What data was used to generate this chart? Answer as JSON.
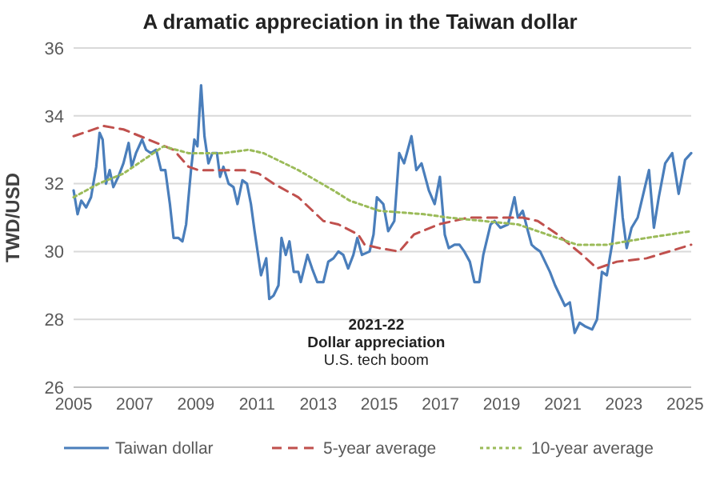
{
  "chart_data": {
    "type": "line",
    "title": "A dramatic appreciation in the Taiwan dollar",
    "ylabel": "TWD/USD",
    "xlim": [
      2005,
      2025.2
    ],
    "xticks": [
      2005,
      2007,
      2009,
      2011,
      2013,
      2015,
      2017,
      2019,
      2021,
      2023,
      2025
    ],
    "ylim": [
      26,
      36
    ],
    "yticks": [
      26,
      28,
      30,
      32,
      34,
      36
    ],
    "grid": "y",
    "legend": "bottom",
    "annotations": [
      "2021-22",
      "Dollar appreciation",
      "U.S. tech boom"
    ],
    "series": [
      {
        "name": "Taiwan dollar",
        "color": "#4a7ebb",
        "line_style": "solid",
        "x": [
          2005,
          2005.13,
          2005.25,
          2005.41,
          2005.57,
          2005.74,
          2005.85,
          2005.95,
          2006.06,
          2006.18,
          2006.3,
          2006.46,
          2006.63,
          2006.8,
          2006.9,
          2007.04,
          2007.24,
          2007.37,
          2007.53,
          2007.7,
          2007.86,
          2008.0,
          2008.15,
          2008.27,
          2008.43,
          2008.56,
          2008.68,
          2008.84,
          2008.95,
          2009.05,
          2009.17,
          2009.28,
          2009.41,
          2009.54,
          2009.69,
          2009.79,
          2009.9,
          2010.07,
          2010.23,
          2010.36,
          2010.52,
          2010.67,
          2010.8,
          2010.92,
          2011.05,
          2011.13,
          2011.3,
          2011.4,
          2011.54,
          2011.7,
          2011.8,
          2011.94,
          2012.06,
          2012.2,
          2012.35,
          2012.43,
          2012.65,
          2012.8,
          2012.97,
          2013.17,
          2013.33,
          2013.5,
          2013.66,
          2013.82,
          2013.98,
          2014.15,
          2014.28,
          2014.43,
          2014.68,
          2014.81,
          2014.92,
          2015.13,
          2015.29,
          2015.49,
          2015.65,
          2015.81,
          2016.05,
          2016.21,
          2016.38,
          2016.62,
          2016.81,
          2016.98,
          2017.14,
          2017.27,
          2017.46,
          2017.62,
          2017.78,
          2017.96,
          2018.11,
          2018.27,
          2018.4,
          2018.64,
          2018.77,
          2018.96,
          2019.21,
          2019.42,
          2019.53,
          2019.69,
          2019.86,
          2019.98,
          2020.1,
          2020.26,
          2020.42,
          2020.58,
          2020.75,
          2020.91,
          2021.07,
          2021.23,
          2021.39,
          2021.55,
          2021.72,
          2021.96,
          2022.12,
          2022.28,
          2022.44,
          2022.61,
          2022.85,
          2022.96,
          2023.09,
          2023.25,
          2023.45,
          2023.66,
          2023.82,
          2023.98,
          2024.14,
          2024.35,
          2024.58,
          2024.79,
          2025.0,
          2025.2
        ],
        "values": [
          31.8,
          31.1,
          31.5,
          31.3,
          31.6,
          32.5,
          33.5,
          33.3,
          32.0,
          32.4,
          31.9,
          32.2,
          32.6,
          33.2,
          32.5,
          32.9,
          33.3,
          33.0,
          32.9,
          33.0,
          32.4,
          32.4,
          31.4,
          30.4,
          30.4,
          30.3,
          30.8,
          32.4,
          33.3,
          33.1,
          34.9,
          33.4,
          32.6,
          32.9,
          32.9,
          32.2,
          32.5,
          32.0,
          31.9,
          31.4,
          32.1,
          32.0,
          31.4,
          30.6,
          29.8,
          29.3,
          29.8,
          28.6,
          28.7,
          29.0,
          30.4,
          29.9,
          30.3,
          29.4,
          29.4,
          29.1,
          29.9,
          29.5,
          29.1,
          29.1,
          29.7,
          29.8,
          30.0,
          29.9,
          29.5,
          29.9,
          30.4,
          29.9,
          30.0,
          30.5,
          31.6,
          31.4,
          30.6,
          30.9,
          32.9,
          32.6,
          33.4,
          32.4,
          32.6,
          31.8,
          31.4,
          32.2,
          30.5,
          30.1,
          30.2,
          30.2,
          30.0,
          29.7,
          29.1,
          29.1,
          29.9,
          30.8,
          30.9,
          30.7,
          30.8,
          31.6,
          31.0,
          31.2,
          30.6,
          30.2,
          30.1,
          30.0,
          29.7,
          29.4,
          29.0,
          28.7,
          28.4,
          28.5,
          27.6,
          27.9,
          27.8,
          27.7,
          28.0,
          29.4,
          29.3,
          30.2,
          32.2,
          31.0,
          30.1,
          30.7,
          31.0,
          31.8,
          32.4,
          30.7,
          31.6,
          32.6,
          32.9,
          31.7,
          32.7,
          32.9
        ]
      },
      {
        "name": "5-year average",
        "color": "#c0504d",
        "line_style": "dashed",
        "x": [
          2005,
          2005.98,
          2006.63,
          2007.45,
          2008.27,
          2008.76,
          2009.08,
          2009.9,
          2010.56,
          2011.05,
          2011.54,
          2012.35,
          2013.17,
          2013.66,
          2014.31,
          2014.52,
          2015.0,
          2015.65,
          2016.13,
          2016.94,
          2017.91,
          2018.88,
          2019.69,
          2020.18,
          2020.83,
          2021.64,
          2022.12,
          2022.77,
          2023.74,
          2025.2
        ],
        "values": [
          33.4,
          33.7,
          33.6,
          33.3,
          33.0,
          32.5,
          32.4,
          32.4,
          32.4,
          32.3,
          32.0,
          31.6,
          30.9,
          30.8,
          30.5,
          30.2,
          30.1,
          30.0,
          30.5,
          30.8,
          31.0,
          31.0,
          31.0,
          30.9,
          30.5,
          29.9,
          29.5,
          29.7,
          29.8,
          30.2
        ]
      },
      {
        "name": "10-year average",
        "color": "#9bbb59",
        "line_style": "dotted",
        "x": [
          2005,
          2005.82,
          2006.63,
          2007.45,
          2007.94,
          2008.76,
          2009.9,
          2010.72,
          2011.21,
          2012.35,
          2013.5,
          2014.03,
          2015.0,
          2016.46,
          2017.27,
          2018.4,
          2019.53,
          2020.5,
          2021.47,
          2022.44,
          2023.74,
          2025.2
        ],
        "values": [
          31.6,
          32.0,
          32.3,
          32.8,
          33.1,
          32.9,
          32.9,
          33.0,
          32.9,
          32.4,
          31.8,
          31.5,
          31.2,
          31.1,
          31.0,
          30.9,
          30.8,
          30.5,
          30.2,
          30.2,
          30.4,
          30.6
        ]
      }
    ]
  }
}
